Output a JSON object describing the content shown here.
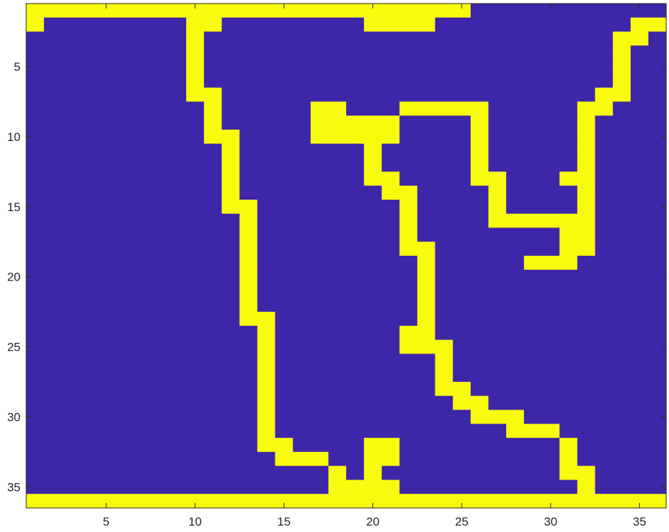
{
  "chart_data": {
    "type": "heatmap",
    "title": "",
    "xlabel": "",
    "ylabel": "",
    "columns": 36,
    "rows": 36,
    "xlim": [
      0.5,
      36.5
    ],
    "ylim": [
      0.5,
      36.5
    ],
    "y_reversed": true,
    "x_ticks": [
      5,
      10,
      15,
      20,
      25,
      30,
      35
    ],
    "y_ticks": [
      5,
      10,
      15,
      20,
      25,
      30,
      35
    ],
    "x_tick_labels": [
      "5",
      "10",
      "15",
      "20",
      "25",
      "30",
      "35"
    ],
    "y_tick_labels": [
      "5",
      "10",
      "15",
      "20",
      "25",
      "30",
      "35"
    ],
    "colormap": {
      "0": "#3e26a8",
      "1": "#f9fb0e"
    },
    "grid": false,
    "legend": "none",
    "matrix_rows": [
      "111111111111111111111111100000000000",
      "100000000110000000011110000000000011",
      "000000000100000000000000000000000110",
      "000000000100000000000000000000000100",
      "000000000100000000000000000000000100",
      "000000000100000000000000000000000100",
      "000000000110000000000000000000001100",
      "000000000010000011000111110000011000",
      "000000000010000011111000010000010000",
      "000000000011000011111000010000010000",
      "000000000001000000010000010000010000",
      "000000000001000000010000010000010000",
      "000000000001000000011000011000110000",
      "000000000001000000001100001000010000",
      "000000000001100000000100001000010000",
      "000000000000100000000100001111110000",
      "000000000000100000000100000000110000",
      "000000000000100000000110000000110000",
      "000000000000100000000010000011100000",
      "000000000000100000000010000000000000",
      "000000000000100000000010000000000000",
      "000000000000100000000010000000000000",
      "000000000000110000000010000000000000",
      "000000000000010000000110000000000000",
      "000000000000010000000111000000000000",
      "000000000000010000000001000000000000",
      "000000000000010000000001000000000000",
      "000000000000010000000001100000000000",
      "000000000000010000000000110000000000",
      "000000000000010000000000011100000000",
      "000000000000010000000000000111000000",
      "000000000000011000011000000000100000",
      "000000000000001110011000000000100000",
      "000000000000000001010000000000110000",
      "000000000000000001111000000000010000",
      "111111111111111111111111111111111111"
    ]
  }
}
